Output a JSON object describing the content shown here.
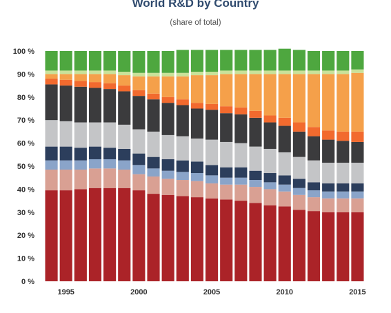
{
  "chart_data": {
    "type": "bar",
    "stacked": true,
    "title": "World R&D by Country",
    "subtitle": "(share of total)",
    "xlabel": "",
    "ylabel": "",
    "ylim": [
      0,
      100
    ],
    "grid": false,
    "legend": "none",
    "y_ticks": [
      "0 %",
      "10 %",
      "20 %",
      "30 %",
      "40 %",
      "50 %",
      "60 %",
      "70 %",
      "80 %",
      "90 %",
      "100 %"
    ],
    "x_ticks": [
      {
        "label": "1995",
        "year": 1995
      },
      {
        "label": "2000",
        "year": 2000
      },
      {
        "label": "2005",
        "year": 2005
      },
      {
        "label": "2010",
        "year": 2010
      },
      {
        "label": "2015",
        "year": 2015
      }
    ],
    "years": [
      1994,
      1995,
      1996,
      1997,
      1998,
      1999,
      2000,
      2001,
      2002,
      2003,
      2004,
      2005,
      2006,
      2007,
      2008,
      2009,
      2010,
      2011,
      2012,
      2013,
      2014,
      2015
    ],
    "series": [
      {
        "color": "#ab2328",
        "values": [
          39.5,
          39.5,
          40,
          40.5,
          40.5,
          40.5,
          39.5,
          38,
          37.5,
          37,
          36.5,
          36,
          35.5,
          35,
          34,
          33,
          32.5,
          31,
          30.5,
          30,
          30,
          30
        ]
      },
      {
        "color": "#d9a093",
        "values": [
          9,
          9,
          8.5,
          8.5,
          8.5,
          8,
          7,
          7.5,
          7,
          7,
          7,
          6.5,
          6.5,
          7,
          7,
          7,
          6.5,
          6.5,
          6,
          6,
          6,
          6
        ]
      },
      {
        "color": "#8aa4c9",
        "values": [
          4,
          4,
          4,
          4,
          4,
          4,
          4,
          3.5,
          3.5,
          3.5,
          3.5,
          3.5,
          3,
          3,
          3,
          3,
          3,
          3,
          3,
          3,
          3,
          3
        ]
      },
      {
        "color": "#2c3e5c",
        "values": [
          6,
          6,
          5.5,
          5.5,
          5,
          5,
          5,
          5,
          5,
          5,
          5,
          4.5,
          4.5,
          4.5,
          4,
          4,
          4,
          4,
          3.5,
          3.5,
          3.5,
          3.5
        ]
      },
      {
        "color": "#c4c5c7",
        "values": [
          11.5,
          11,
          11,
          10.5,
          11,
          10.5,
          10.5,
          11,
          10.5,
          10.5,
          10,
          11,
          11,
          10.5,
          10.5,
          10.5,
          10,
          9.5,
          9.5,
          9,
          9,
          9
        ]
      },
      {
        "color": "#3b3b3d",
        "values": [
          15.5,
          15.5,
          15.5,
          15,
          14.5,
          14.5,
          14.5,
          14,
          14,
          13.5,
          13,
          13,
          12.5,
          12.5,
          12.5,
          11.5,
          11.5,
          11,
          10.5,
          10,
          9.5,
          9
        ]
      },
      {
        "color": "#f26a2e",
        "values": [
          2.5,
          2.5,
          2.5,
          2.5,
          2.5,
          2.5,
          2.5,
          2.5,
          2.5,
          2.5,
          2.5,
          2.5,
          3,
          3,
          3,
          3,
          3.5,
          4,
          4,
          4,
          4,
          4.5
        ]
      },
      {
        "color": "#f5a04a",
        "values": [
          2,
          2.5,
          3,
          3.5,
          4,
          4.5,
          6,
          7.5,
          9,
          10,
          12,
          12.5,
          14,
          14.5,
          16,
          18,
          19,
          21,
          23,
          24.5,
          25,
          25.5
        ]
      },
      {
        "color": "#c9e29a",
        "values": [
          1.5,
          1.5,
          1.5,
          1.5,
          1.5,
          1.5,
          1.5,
          1.5,
          1.5,
          1.5,
          1.5,
          1.5,
          1.5,
          1.5,
          1.5,
          1.5,
          1.5,
          1.5,
          1.5,
          1.5,
          1.5,
          1.5
        ]
      },
      {
        "color": "#4ea73f",
        "values": [
          8.5,
          8.5,
          8.5,
          8.5,
          8.5,
          9,
          9.5,
          9.5,
          9.5,
          10,
          9.5,
          9.5,
          9,
          9,
          9,
          9,
          9.5,
          9,
          8.5,
          8.5,
          8.5,
          8
        ]
      }
    ]
  }
}
